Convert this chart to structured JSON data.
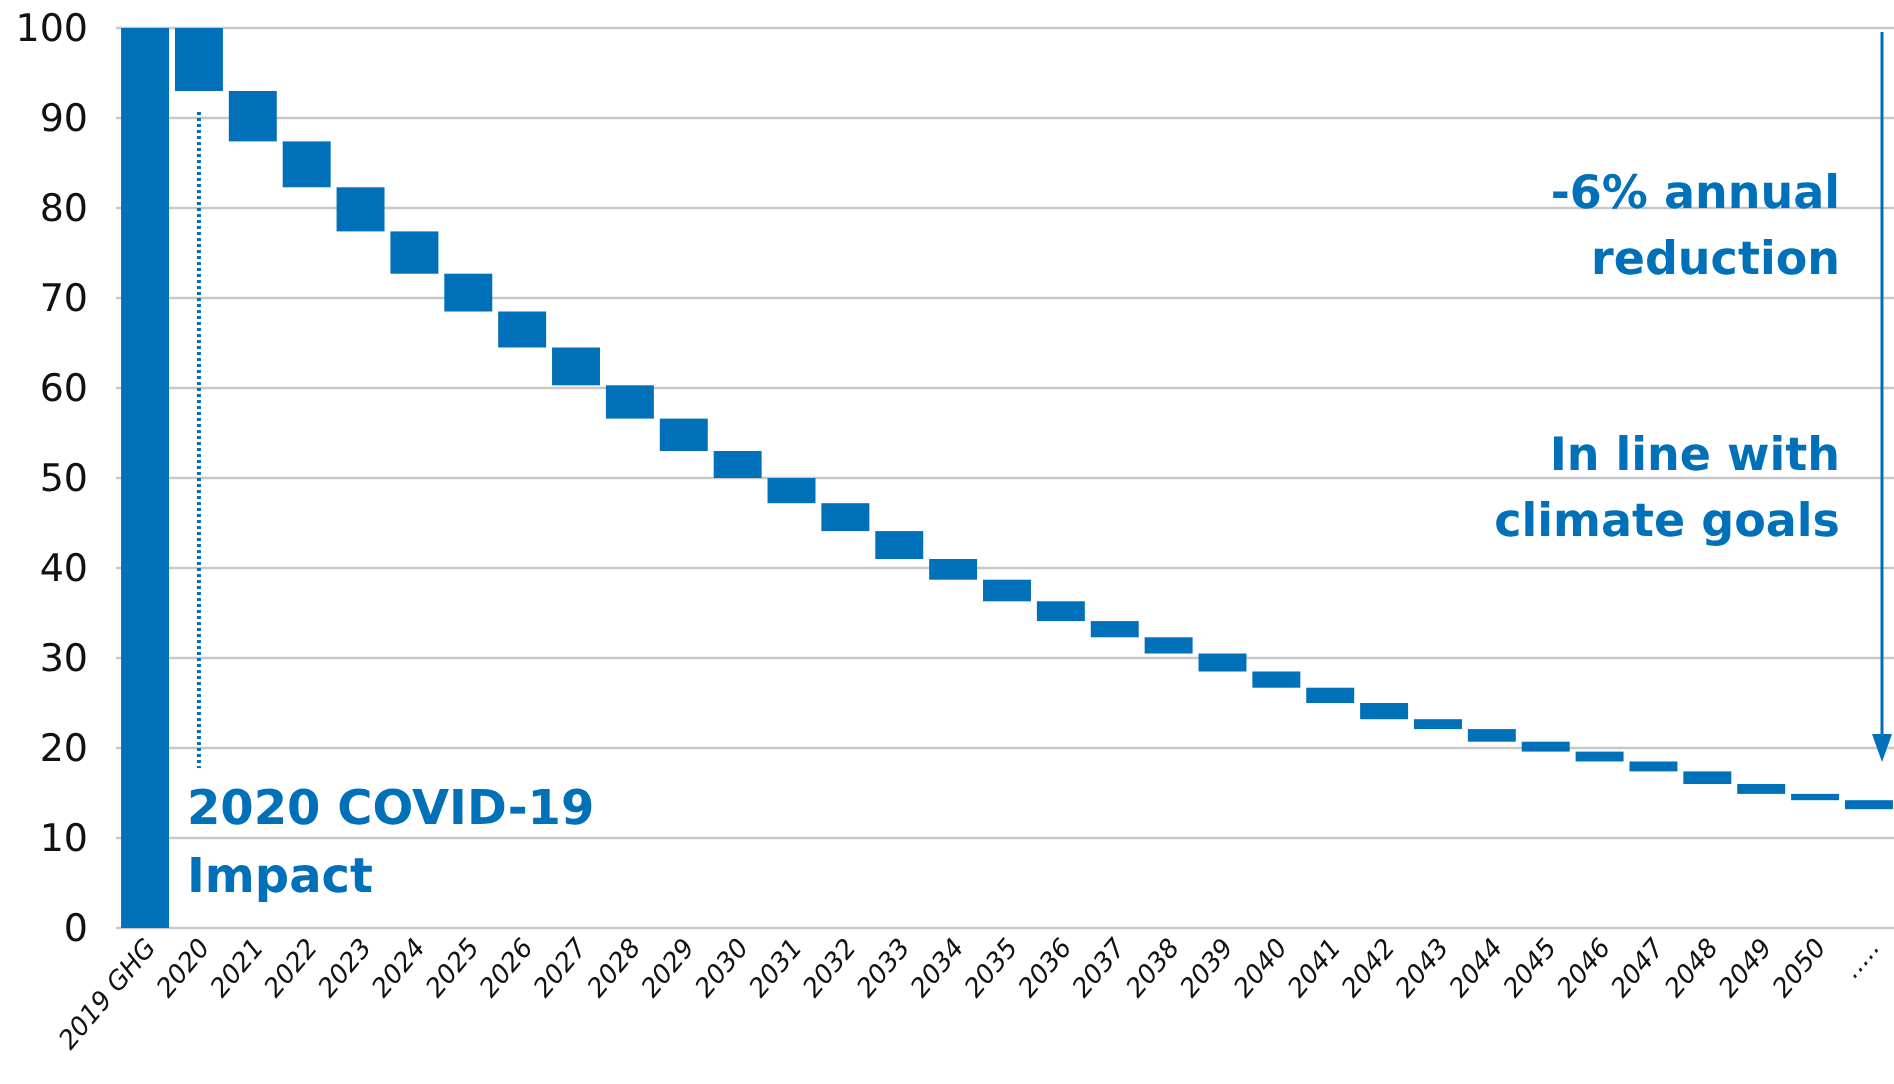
{
  "chart_data": {
    "type": "bar",
    "categories": [
      "2019 GHG",
      "2020",
      "2021",
      "2022",
      "2023",
      "2024",
      "2025",
      "2026",
      "2027",
      "2028",
      "2029",
      "2030",
      "2031",
      "2032",
      "2033",
      "2034",
      "2035",
      "2036",
      "2037",
      "2038",
      "2039",
      "2040",
      "2041",
      "2042",
      "2043",
      "2044",
      "2045",
      "2046",
      "2047",
      "2048",
      "2049",
      "2050",
      "....."
    ],
    "values": [
      100,
      -7.0,
      -5.6,
      -5.1,
      -4.9,
      -4.7,
      -4.2,
      -4.0,
      -4.2,
      -3.7,
      -3.6,
      -3.0,
      -2.8,
      -3.1,
      -3.1,
      -2.3,
      -2.4,
      -2.2,
      -1.8,
      -1.8,
      -2.0,
      -1.8,
      -1.7,
      -1.8,
      -1.1,
      -1.4,
      -1.1,
      -1.1,
      -1.1,
      -1.4,
      -1.1,
      -0.7,
      -1.0
    ],
    "base": [
      0,
      100,
      93.0,
      87.4,
      82.3,
      77.4,
      72.7,
      68.5,
      64.5,
      60.3,
      56.6,
      53.0,
      50.0,
      47.2,
      44.1,
      41.0,
      38.7,
      36.3,
      34.1,
      32.3,
      30.5,
      28.5,
      26.7,
      25.0,
      23.2,
      22.1,
      20.7,
      19.6,
      18.5,
      17.4,
      16.0,
      14.9,
      14.2
    ],
    "color": "#0070b8",
    "ylim": [
      0,
      100
    ],
    "yticks": [
      0,
      10,
      20,
      30,
      40,
      50,
      60,
      70,
      80,
      90,
      100
    ],
    "grid": "y",
    "annotations": [
      "2020 COVID-19 Impact",
      "-6% annual reduction",
      "In line with climate goals"
    ]
  }
}
